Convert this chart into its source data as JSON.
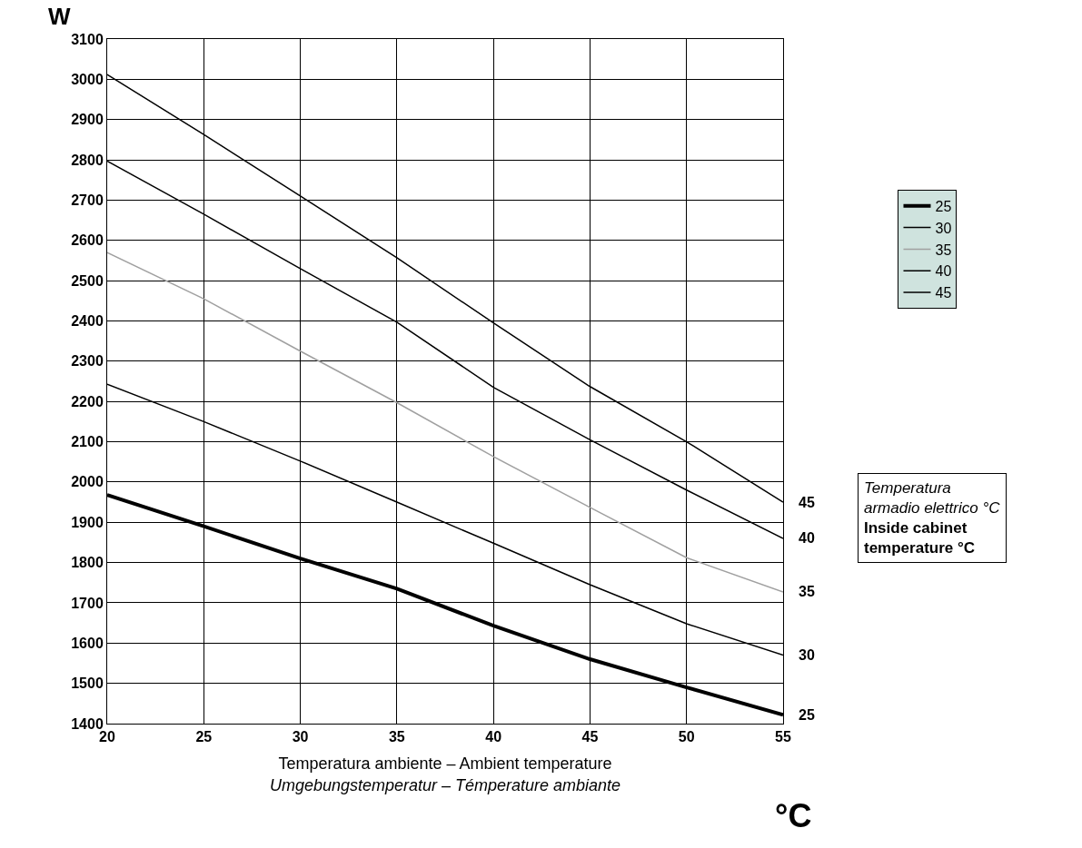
{
  "chart_data": {
    "type": "line",
    "ylabel": "W",
    "xlabel": "Temperatura ambiente – Ambient temperature\nUmgebungstemperatur – Témperature ambiante",
    "annotations": [
      "°C",
      "Temperatura\narmadio elettrico °C\nInside cabinet\ntemperature °C"
    ],
    "x": [
      20,
      25,
      30,
      35,
      40,
      45,
      50,
      55
    ],
    "series": [
      {
        "name": "25",
        "color": "#000000",
        "values": [
          1968,
          1890,
          1810,
          1735,
          1643,
          1560,
          1490,
          1422
        ]
      },
      {
        "name": "30",
        "color": "#000000",
        "values": [
          2243,
          2150,
          2052,
          1950,
          1848,
          1745,
          1648,
          1570
        ]
      },
      {
        "name": "35",
        "color": "#a0a0a0",
        "values": [
          2570,
          2455,
          2325,
          2197,
          2063,
          1937,
          1812,
          1727
        ]
      },
      {
        "name": "40",
        "color": "#000000",
        "values": [
          2797,
          2665,
          2530,
          2397,
          2235,
          2105,
          1980,
          1860
        ]
      },
      {
        "name": "45",
        "color": "#000000",
        "values": [
          3012,
          2863,
          2710,
          2557,
          2395,
          2237,
          2100,
          1950
        ]
      }
    ],
    "xlim": [
      20,
      55
    ],
    "xticks": [
      20,
      25,
      30,
      35,
      40,
      45,
      50,
      55
    ],
    "ylim": [
      1400,
      3100
    ],
    "yticks": [
      1400,
      1500,
      1600,
      1700,
      1800,
      1900,
      2000,
      2100,
      2200,
      2300,
      2400,
      2500,
      2600,
      2700,
      2800,
      2900,
      3000,
      3100
    ],
    "grid": true,
    "legend": "right",
    "marker": "none",
    "line_style": "solid"
  }
}
